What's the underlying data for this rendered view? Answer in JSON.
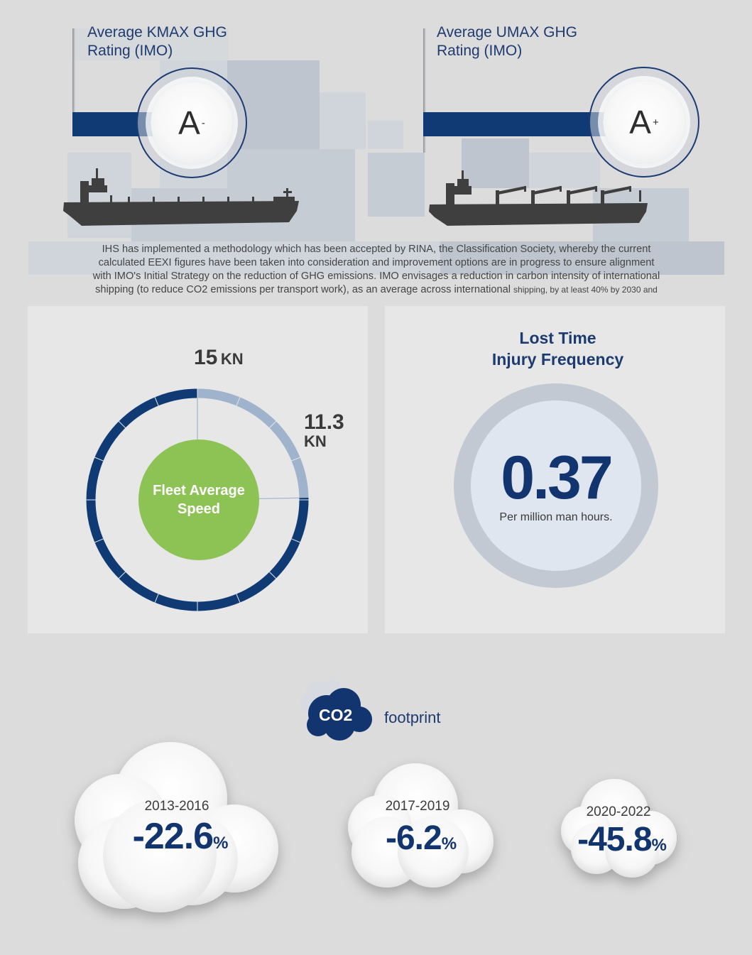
{
  "ratings": [
    {
      "title_line1": "Average KMAX GHG",
      "title_line2": "Rating (IMO)",
      "grade": "A",
      "modifier": "-"
    },
    {
      "title_line1": "Average UMAX GHG",
      "title_line2": "Rating (IMO)",
      "grade": "A",
      "modifier": "+"
    }
  ],
  "intro": {
    "line1": "IHS has implemented a methodology which has been accepted by RINA, the Classification Society, whereby the current",
    "line2": "calculated EEXI figures have been taken into consideration and improvement options are in progress to ensure alignment",
    "line3": "with IMO's Initial Strategy on the reduction of GHG emissions. IMO envisages a reduction in carbon intensity of international",
    "line4a": "shipping (to reduce CO2 emissions per transport work), as an average across international",
    "line4b": "shipping, by at least 40% by 2030 and"
  },
  "speed": {
    "max_value": "15",
    "max_unit": "KN",
    "avg_value": "11.3",
    "avg_unit": "KN",
    "center_line1": "Fleet Average",
    "center_line2": "Speed",
    "fraction": 0.753
  },
  "lti": {
    "title_line1": "Lost Time",
    "title_line2": "Injury Frequency",
    "value": "0.37",
    "unit": "Per million man hours."
  },
  "co2": {
    "badge": "CO2",
    "label": "footprint",
    "periods": [
      {
        "period": "2013-2016",
        "value": "-22.6",
        "suffix": "%"
      },
      {
        "period": "2017-2019",
        "value": "-6.2",
        "suffix": "%"
      },
      {
        "period": "2020-2022",
        "value": "-45.8",
        "suffix": "%"
      }
    ]
  },
  "colors": {
    "navy": "#0f3a73",
    "green": "#8dc355",
    "light_blue": "#9fb3cc",
    "background": "#dcdcdd"
  }
}
